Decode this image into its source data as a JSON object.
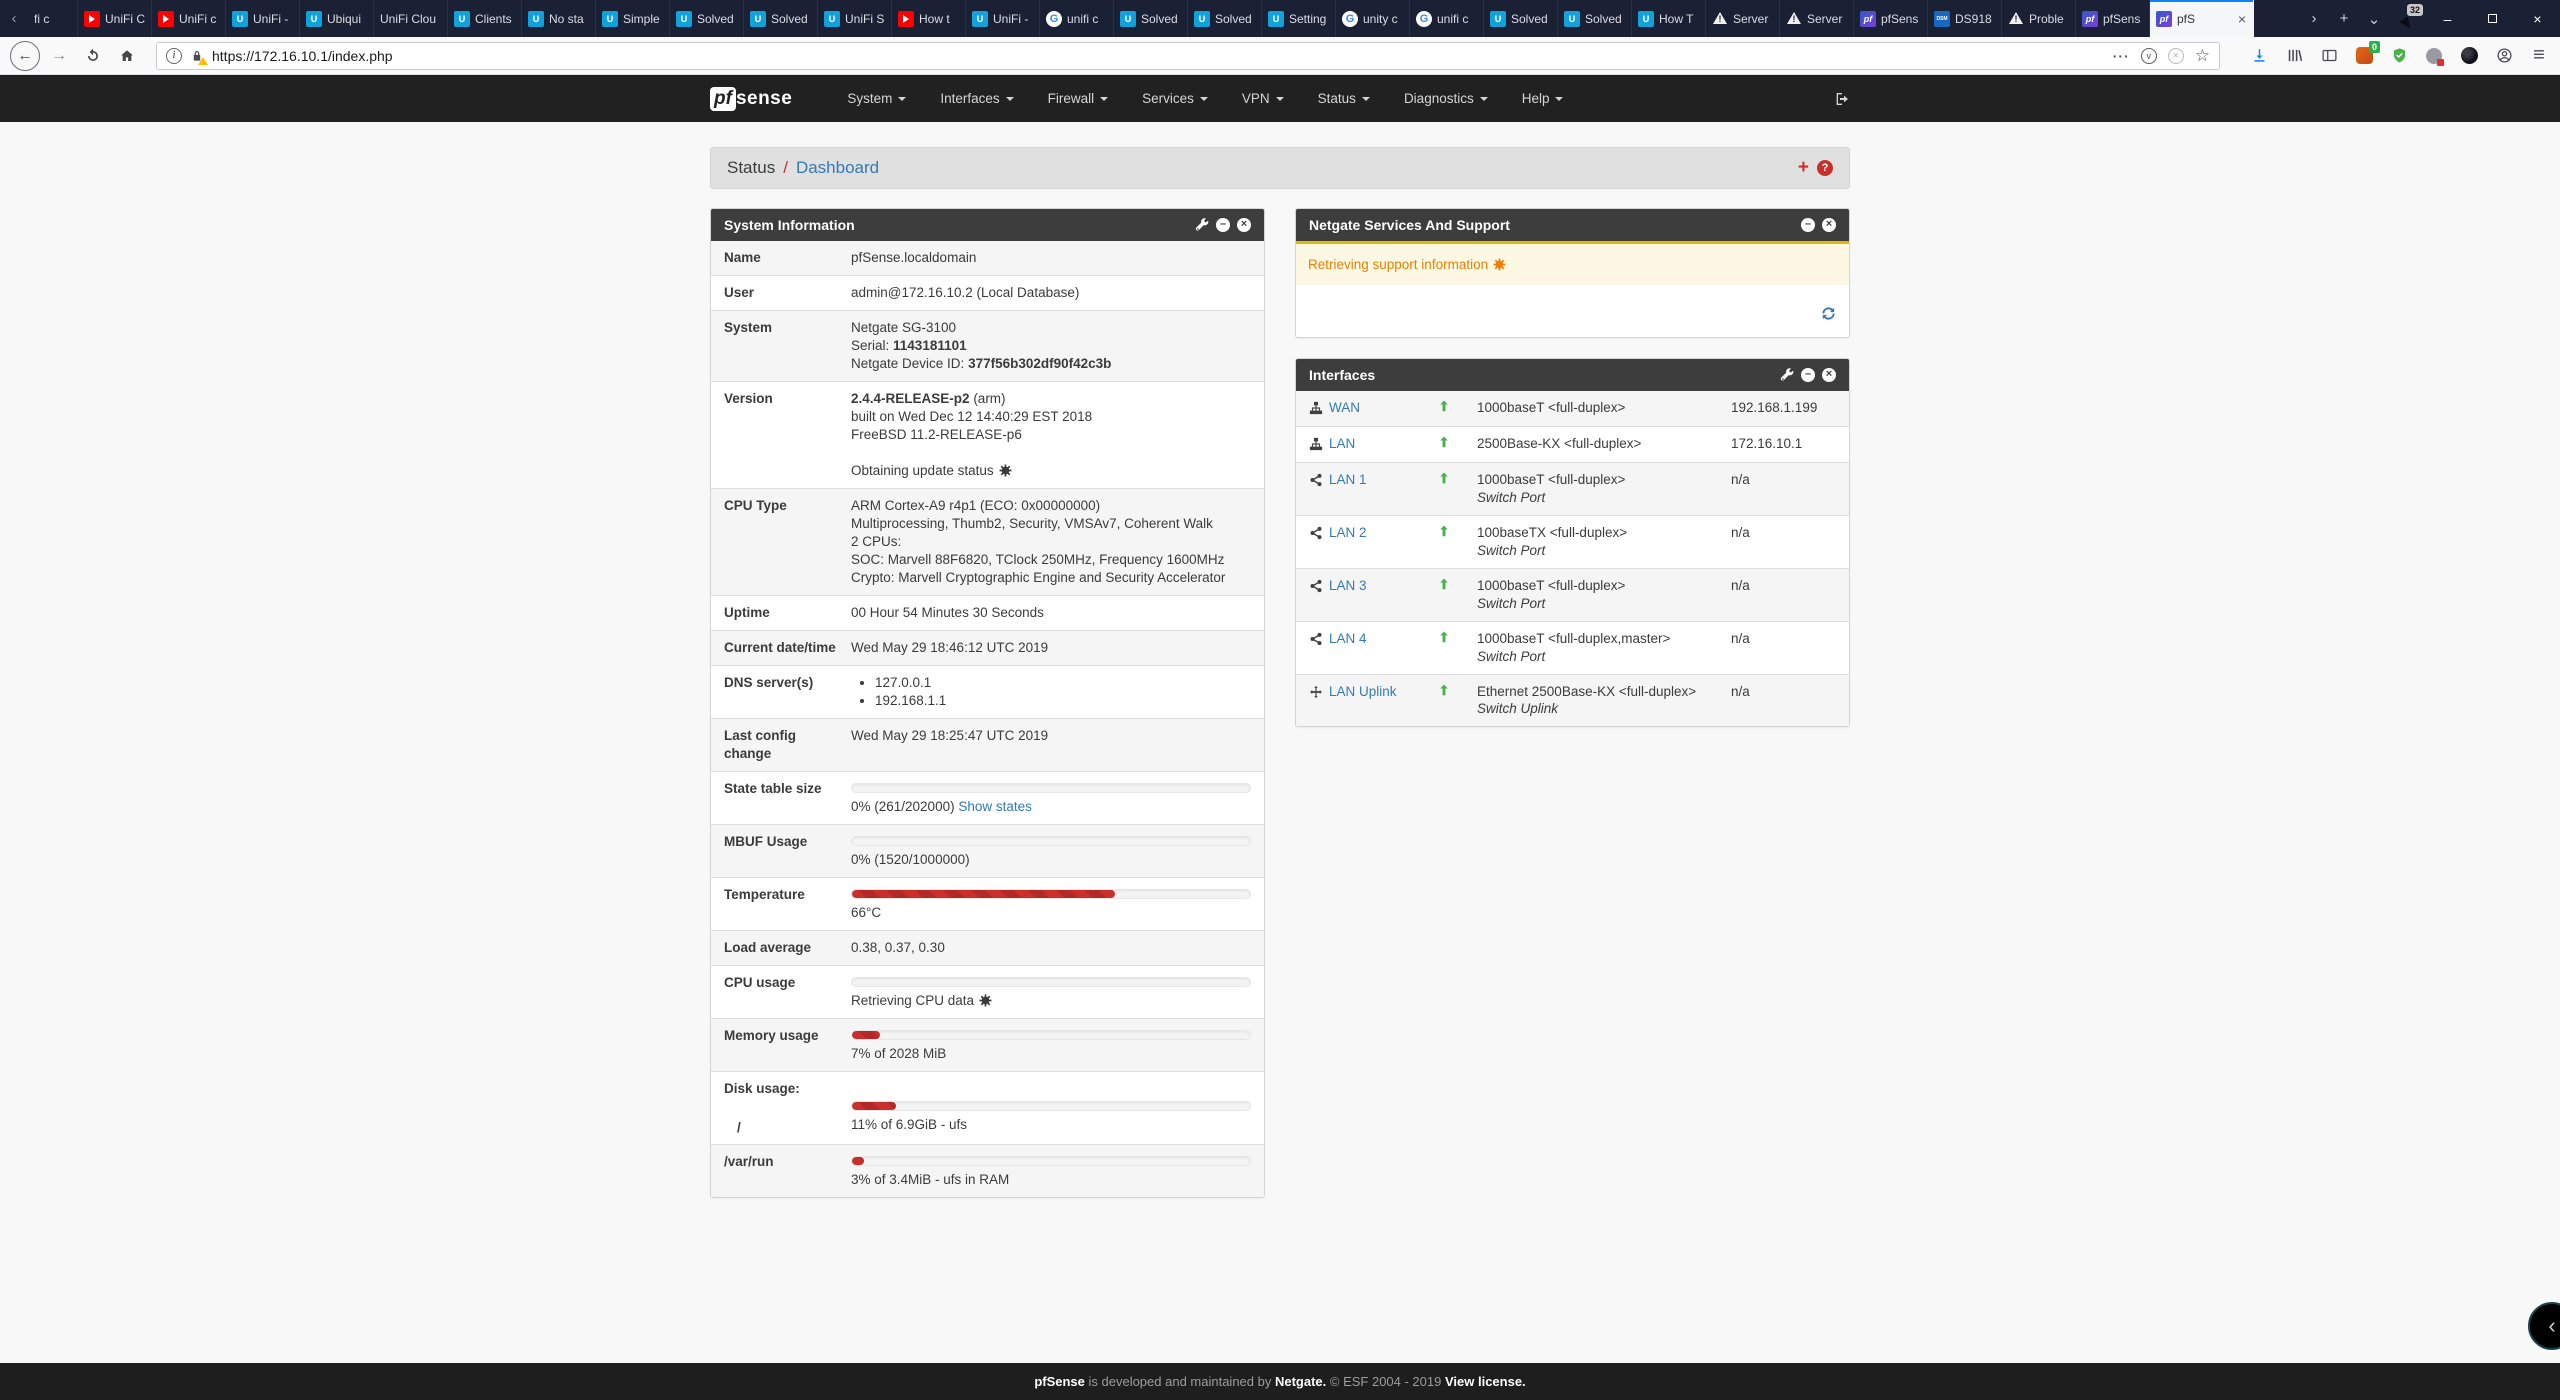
{
  "browser": {
    "tabbar": {
      "counter": "32"
    },
    "tabs": [
      {
        "fav": "none",
        "title": "fi c"
      },
      {
        "fav": "youtube",
        "title": "UniFi C"
      },
      {
        "fav": "youtube",
        "title": "UniFi c"
      },
      {
        "fav": "ubnt",
        "title": "UniFi -"
      },
      {
        "fav": "ubnt",
        "title": "Ubiqui"
      },
      {
        "fav": "none",
        "title": "UniFi Clou"
      },
      {
        "fav": "ubnt",
        "title": "Clients"
      },
      {
        "fav": "ubnt",
        "title": "No sta"
      },
      {
        "fav": "ubnt",
        "title": "Simple"
      },
      {
        "fav": "ubnt",
        "title": "Solved"
      },
      {
        "fav": "ubnt",
        "title": "Solved"
      },
      {
        "fav": "ubnt",
        "title": "UniFi S"
      },
      {
        "fav": "youtube",
        "title": "How t"
      },
      {
        "fav": "ubnt",
        "title": "UniFi -"
      },
      {
        "fav": "google",
        "title": "unifi c"
      },
      {
        "fav": "ubnt",
        "title": "Solved"
      },
      {
        "fav": "ubnt",
        "title": "Solved"
      },
      {
        "fav": "ubnt",
        "title": "Setting"
      },
      {
        "fav": "google",
        "title": "unity c"
      },
      {
        "fav": "google",
        "title": "unifi c"
      },
      {
        "fav": "ubnt",
        "title": "Solved"
      },
      {
        "fav": "ubnt",
        "title": "Solved"
      },
      {
        "fav": "ubnt",
        "title": "How T"
      },
      {
        "fav": "warn",
        "title": "Server"
      },
      {
        "fav": "warn",
        "title": "Server"
      },
      {
        "fav": "pfsense",
        "title": "pfSens"
      },
      {
        "fav": "dsm",
        "title": "DS918"
      },
      {
        "fav": "warn",
        "title": "Proble"
      },
      {
        "fav": "pfsense",
        "title": "pfSens"
      },
      {
        "fav": "pfsense",
        "title": "pfS",
        "active": true
      }
    ],
    "toolbar": {
      "url": "https://172.16.10.1/index.php",
      "ext_badge": "0"
    }
  },
  "app": {
    "nav": {
      "brand_pf": "pf",
      "brand_sense": "sense",
      "items": [
        "System",
        "Interfaces",
        "Firewall",
        "Services",
        "VPN",
        "Status",
        "Diagnostics",
        "Help"
      ]
    },
    "breadcrumb": {
      "section": "Status",
      "divider": "/",
      "page": "Dashboard"
    },
    "sysinfo": {
      "title": "System Information",
      "rows": {
        "name": {
          "label": "Name",
          "value": "pfSense.localdomain"
        },
        "user": {
          "label": "User",
          "value": "admin@172.16.10.2 (Local Database)"
        },
        "system": {
          "label": "System",
          "model": "Netgate SG-3100",
          "serial_label": "Serial:",
          "serial": "1143181101",
          "devid_label": "Netgate Device ID:",
          "devid": "377f56b302df90f42c3b"
        },
        "version": {
          "label": "Version",
          "version": "2.4.4-RELEASE-p2",
          "arch": "(arm)",
          "built": "built on Wed Dec 12 14:40:29 EST 2018",
          "os": "FreeBSD 11.2-RELEASE-p6",
          "status": "Obtaining update status"
        },
        "cpu_type": {
          "label": "CPU Type",
          "lines": [
            "ARM Cortex-A9 r4p1 (ECO: 0x00000000)",
            "Multiprocessing, Thumb2, Security, VMSAv7, Coherent Walk",
            "2 CPUs:",
            "SOC: Marvell 88F6820, TClock 250MHz, Frequency 1600MHz",
            "Crypto: Marvell Cryptographic Engine and Security Accelerator"
          ]
        },
        "uptime": {
          "label": "Uptime",
          "value": "00 Hour 54 Minutes 30 Seconds"
        },
        "datetime": {
          "label": "Current date/time",
          "value": "Wed May 29 18:46:12 UTC 2019"
        },
        "dns": {
          "label": "DNS server(s)",
          "servers": [
            "127.0.0.1",
            "192.168.1.1"
          ]
        },
        "lastconfig": {
          "label": "Last config change",
          "value": "Wed May 29 18:25:47 UTC 2019"
        },
        "statetable": {
          "label": "State table size",
          "pct": 0,
          "text": "0% (261/202000)",
          "link": "Show states"
        },
        "mbuf": {
          "label": "MBUF Usage",
          "pct": 0,
          "text": "0% (1520/1000000)"
        },
        "temperature": {
          "label": "Temperature",
          "pct": 66,
          "text": "66°C"
        },
        "load": {
          "label": "Load average",
          "value": "0.38, 0.37, 0.30"
        },
        "cpu_usage": {
          "label": "CPU usage",
          "pct": 0,
          "status": "Retrieving CPU data"
        },
        "memory": {
          "label": "Memory usage",
          "pct": 7,
          "text": "7% of 2028 MiB"
        },
        "disk": {
          "label": "Disk usage:",
          "mounts": [
            {
              "name": "/",
              "pct": 11,
              "text": "11% of 6.9GiB - ufs"
            },
            {
              "name": "/var/run",
              "pct": 3,
              "text": "3% of 3.4MiB - ufs in RAM"
            }
          ]
        }
      }
    },
    "netgate": {
      "title": "Netgate Services And Support",
      "status": "Retrieving support information"
    },
    "interfaces": {
      "title": "Interfaces",
      "rows": [
        {
          "icon": "sitemap",
          "name": "WAN",
          "speed": "1000baseT <full-duplex>",
          "sub": "",
          "ip": "192.168.1.199"
        },
        {
          "icon": "sitemap",
          "name": "LAN",
          "speed": "2500Base-KX <full-duplex>",
          "sub": "",
          "ip": "172.16.10.1"
        },
        {
          "icon": "share",
          "name": "LAN 1",
          "speed": "1000baseT <full-duplex>",
          "sub": "Switch Port",
          "ip": "n/a"
        },
        {
          "icon": "share",
          "name": "LAN 2",
          "speed": "100baseTX <full-duplex>",
          "sub": "Switch Port",
          "ip": "n/a"
        },
        {
          "icon": "share",
          "name": "LAN 3",
          "speed": "1000baseT <full-duplex>",
          "sub": "Switch Port",
          "ip": "n/a"
        },
        {
          "icon": "share",
          "name": "LAN 4",
          "speed": "1000baseT <full-duplex,master>",
          "sub": "Switch Port",
          "ip": "n/a"
        },
        {
          "icon": "move",
          "name": "LAN Uplink",
          "speed": "Ethernet 2500Base-KX <full-duplex>",
          "sub": "Switch Uplink",
          "ip": "n/a"
        }
      ]
    },
    "footer": {
      "brand": "pfSense",
      "text1": " is developed and maintained by ",
      "company": "Netgate.",
      "text2": " © ESF 2004 - 2019 ",
      "license": "View license."
    }
  }
}
